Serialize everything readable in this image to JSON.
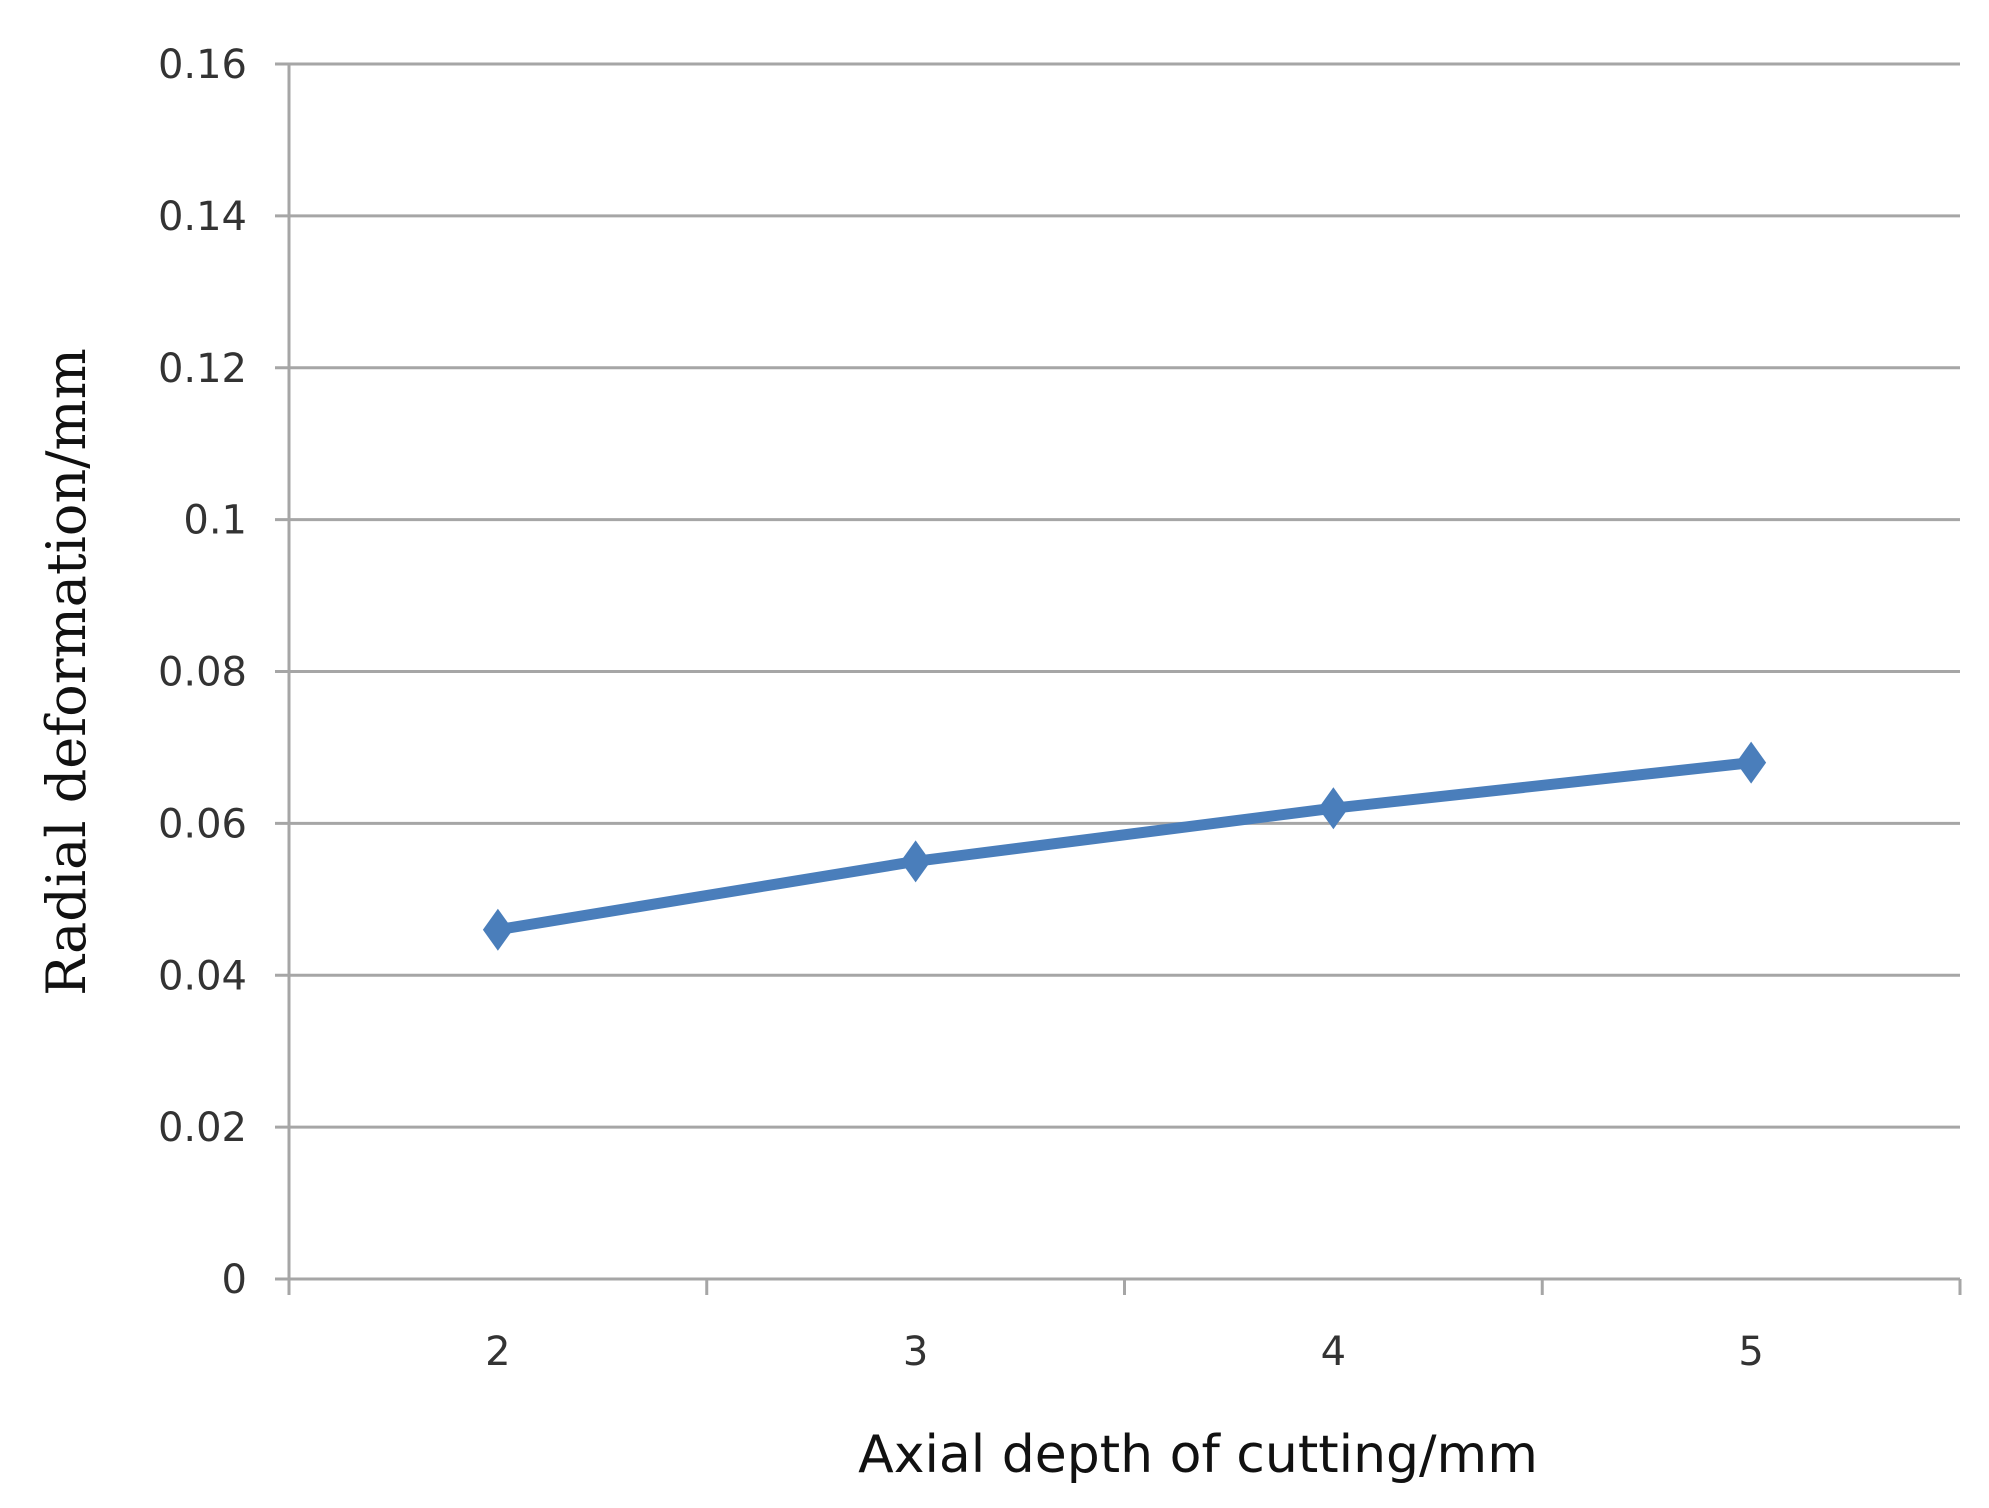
{
  "chart_data": {
    "type": "line",
    "title": "",
    "xlabel": "Axial depth of cutting/mm",
    "ylabel": "Radial deformation/mm",
    "categories": [
      "2",
      "3",
      "4",
      "5"
    ],
    "series": [
      {
        "values": [
          0.046,
          0.055,
          0.062,
          0.068
        ],
        "color": "#4a7ebb",
        "marker": "diamond"
      }
    ],
    "yticks": [
      "0",
      "0.02",
      "0.04",
      "0.06",
      "0.08",
      "0.1",
      "0.12",
      "0.14",
      "0.16"
    ],
    "ylim": [
      0,
      0.16
    ],
    "grid": true,
    "legend": "none"
  }
}
